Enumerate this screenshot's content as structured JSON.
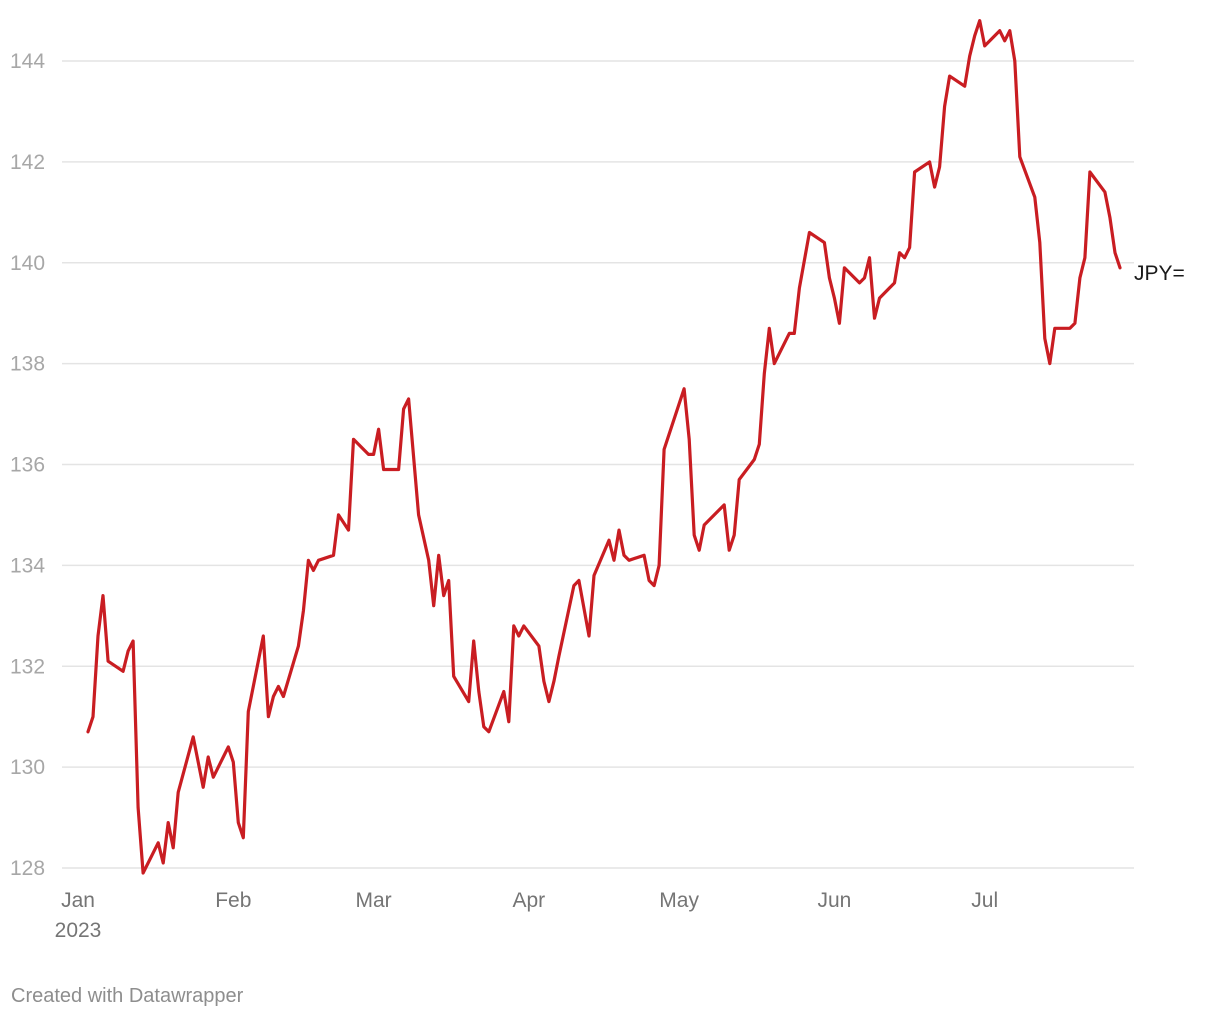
{
  "credit": "Created with Datawrapper",
  "colors": {
    "series": "#c91d22",
    "grid": "#e4e4e4",
    "ytick": "#a7a7a7",
    "xtick": "#757575"
  },
  "chart_data": {
    "type": "line",
    "grid": "horizontal",
    "ylim": [
      128,
      145
    ],
    "xlim": [
      "2023-01-01",
      "2023-08-01"
    ],
    "y_ticks": [
      128,
      130,
      132,
      134,
      136,
      138,
      140,
      142,
      144
    ],
    "x_ticks": [
      {
        "date": "2023-01-01",
        "label": "Jan",
        "sublabel": "2023"
      },
      {
        "date": "2023-02-01",
        "label": "Feb",
        "sublabel": ""
      },
      {
        "date": "2023-03-01",
        "label": "Mar",
        "sublabel": ""
      },
      {
        "date": "2023-04-01",
        "label": "Apr",
        "sublabel": ""
      },
      {
        "date": "2023-05-01",
        "label": "May",
        "sublabel": ""
      },
      {
        "date": "2023-06-01",
        "label": "Jun",
        "sublabel": ""
      },
      {
        "date": "2023-07-01",
        "label": "Jul",
        "sublabel": ""
      }
    ],
    "series": [
      {
        "name": "JPY=",
        "color": "#c91d22",
        "points": [
          [
            "2023-01-03",
            130.7
          ],
          [
            "2023-01-04",
            131.0
          ],
          [
            "2023-01-05",
            132.6
          ],
          [
            "2023-01-06",
            133.4
          ],
          [
            "2023-01-07",
            132.1
          ],
          [
            "2023-01-10",
            131.9
          ],
          [
            "2023-01-11",
            132.3
          ],
          [
            "2023-01-12",
            132.5
          ],
          [
            "2023-01-13",
            129.2
          ],
          [
            "2023-01-14",
            127.9
          ],
          [
            "2023-01-17",
            128.5
          ],
          [
            "2023-01-18",
            128.1
          ],
          [
            "2023-01-19",
            128.9
          ],
          [
            "2023-01-20",
            128.4
          ],
          [
            "2023-01-21",
            129.5
          ],
          [
            "2023-01-24",
            130.6
          ],
          [
            "2023-01-26",
            129.6
          ],
          [
            "2023-01-27",
            130.2
          ],
          [
            "2023-01-28",
            129.8
          ],
          [
            "2023-01-30",
            130.2
          ],
          [
            "2023-01-31",
            130.4
          ],
          [
            "2023-02-01",
            130.1
          ],
          [
            "2023-02-02",
            128.9
          ],
          [
            "2023-02-03",
            128.6
          ],
          [
            "2023-02-04",
            131.1
          ],
          [
            "2023-02-07",
            132.6
          ],
          [
            "2023-02-08",
            131.0
          ],
          [
            "2023-02-09",
            131.4
          ],
          [
            "2023-02-10",
            131.6
          ],
          [
            "2023-02-11",
            131.4
          ],
          [
            "2023-02-14",
            132.4
          ],
          [
            "2023-02-15",
            133.1
          ],
          [
            "2023-02-16",
            134.1
          ],
          [
            "2023-02-17",
            133.9
          ],
          [
            "2023-02-18",
            134.1
          ],
          [
            "2023-02-21",
            134.2
          ],
          [
            "2023-02-22",
            135.0
          ],
          [
            "2023-02-24",
            134.7
          ],
          [
            "2023-02-25",
            136.5
          ],
          [
            "2023-02-28",
            136.2
          ],
          [
            "2023-03-01",
            136.2
          ],
          [
            "2023-03-02",
            136.7
          ],
          [
            "2023-03-03",
            135.9
          ],
          [
            "2023-03-06",
            135.9
          ],
          [
            "2023-03-07",
            137.1
          ],
          [
            "2023-03-08",
            137.3
          ],
          [
            "2023-03-10",
            135.0
          ],
          [
            "2023-03-12",
            134.1
          ],
          [
            "2023-03-13",
            133.2
          ],
          [
            "2023-03-14",
            134.2
          ],
          [
            "2023-03-15",
            133.4
          ],
          [
            "2023-03-16",
            133.7
          ],
          [
            "2023-03-17",
            131.8
          ],
          [
            "2023-03-20",
            131.3
          ],
          [
            "2023-03-21",
            132.5
          ],
          [
            "2023-03-22",
            131.5
          ],
          [
            "2023-03-23",
            130.8
          ],
          [
            "2023-03-24",
            130.7
          ],
          [
            "2023-03-27",
            131.5
          ],
          [
            "2023-03-28",
            130.9
          ],
          [
            "2023-03-29",
            132.8
          ],
          [
            "2023-03-30",
            132.6
          ],
          [
            "2023-03-31",
            132.8
          ],
          [
            "2023-04-03",
            132.4
          ],
          [
            "2023-04-04",
            131.7
          ],
          [
            "2023-04-05",
            131.3
          ],
          [
            "2023-04-06",
            131.7
          ],
          [
            "2023-04-07",
            132.2
          ],
          [
            "2023-04-10",
            133.6
          ],
          [
            "2023-04-11",
            133.7
          ],
          [
            "2023-04-13",
            132.6
          ],
          [
            "2023-04-14",
            133.8
          ],
          [
            "2023-04-17",
            134.5
          ],
          [
            "2023-04-18",
            134.1
          ],
          [
            "2023-04-19",
            134.7
          ],
          [
            "2023-04-20",
            134.2
          ],
          [
            "2023-04-21",
            134.1
          ],
          [
            "2023-04-24",
            134.2
          ],
          [
            "2023-04-25",
            133.7
          ],
          [
            "2023-04-26",
            133.6
          ],
          [
            "2023-04-27",
            134.0
          ],
          [
            "2023-04-28",
            136.3
          ],
          [
            "2023-05-02",
            137.5
          ],
          [
            "2023-05-03",
            136.5
          ],
          [
            "2023-05-04",
            134.6
          ],
          [
            "2023-05-05",
            134.3
          ],
          [
            "2023-05-06",
            134.8
          ],
          [
            "2023-05-09",
            135.1
          ],
          [
            "2023-05-10",
            135.2
          ],
          [
            "2023-05-11",
            134.3
          ],
          [
            "2023-05-12",
            134.6
          ],
          [
            "2023-05-13",
            135.7
          ],
          [
            "2023-05-16",
            136.1
          ],
          [
            "2023-05-17",
            136.4
          ],
          [
            "2023-05-18",
            137.8
          ],
          [
            "2023-05-19",
            138.7
          ],
          [
            "2023-05-20",
            138.0
          ],
          [
            "2023-05-23",
            138.6
          ],
          [
            "2023-05-24",
            138.6
          ],
          [
            "2023-05-25",
            139.5
          ],
          [
            "2023-05-27",
            140.6
          ],
          [
            "2023-05-30",
            140.4
          ],
          [
            "2023-05-31",
            139.7
          ],
          [
            "2023-06-01",
            139.3
          ],
          [
            "2023-06-02",
            138.8
          ],
          [
            "2023-06-03",
            139.9
          ],
          [
            "2023-06-06",
            139.6
          ],
          [
            "2023-06-07",
            139.7
          ],
          [
            "2023-06-08",
            140.1
          ],
          [
            "2023-06-09",
            138.9
          ],
          [
            "2023-06-10",
            139.3
          ],
          [
            "2023-06-13",
            139.6
          ],
          [
            "2023-06-14",
            140.2
          ],
          [
            "2023-06-15",
            140.1
          ],
          [
            "2023-06-16",
            140.3
          ],
          [
            "2023-06-17",
            141.8
          ],
          [
            "2023-06-20",
            142.0
          ],
          [
            "2023-06-21",
            141.5
          ],
          [
            "2023-06-22",
            141.9
          ],
          [
            "2023-06-23",
            143.1
          ],
          [
            "2023-06-24",
            143.7
          ],
          [
            "2023-06-27",
            143.5
          ],
          [
            "2023-06-28",
            144.1
          ],
          [
            "2023-06-29",
            144.5
          ],
          [
            "2023-06-30",
            144.8
          ],
          [
            "2023-07-01",
            144.3
          ],
          [
            "2023-07-04",
            144.6
          ],
          [
            "2023-07-05",
            144.4
          ],
          [
            "2023-07-06",
            144.6
          ],
          [
            "2023-07-07",
            144.0
          ],
          [
            "2023-07-08",
            142.1
          ],
          [
            "2023-07-11",
            141.3
          ],
          [
            "2023-07-12",
            140.4
          ],
          [
            "2023-07-13",
            138.5
          ],
          [
            "2023-07-14",
            138.0
          ],
          [
            "2023-07-15",
            138.7
          ],
          [
            "2023-07-18",
            138.7
          ],
          [
            "2023-07-19",
            138.8
          ],
          [
            "2023-07-20",
            139.7
          ],
          [
            "2023-07-21",
            140.1
          ],
          [
            "2023-07-22",
            141.8
          ],
          [
            "2023-07-25",
            141.4
          ],
          [
            "2023-07-26",
            140.9
          ],
          [
            "2023-07-27",
            140.2
          ],
          [
            "2023-07-28",
            139.9
          ]
        ]
      }
    ]
  }
}
